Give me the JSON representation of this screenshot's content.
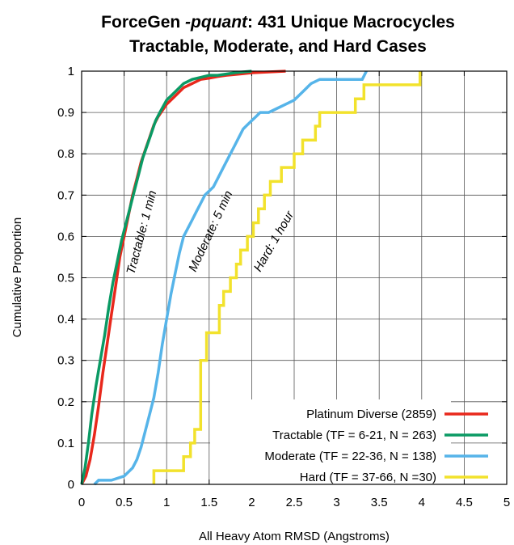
{
  "chart_data": {
    "type": "line",
    "title": {
      "line1_prefix": "ForceGen ",
      "line1_italic": "-pquant",
      "line1_suffix": ": 431 Unique Macrocycles",
      "line2": "Tractable, Moderate, and Hard Cases"
    },
    "xlabel": "All Heavy Atom RMSD (Angstroms)",
    "ylabel": "Cumulative Proportion",
    "xlim": [
      0,
      5
    ],
    "ylim": [
      0,
      1
    ],
    "xticks": [
      "0",
      "0.5",
      "1",
      "1.5",
      "2",
      "2.5",
      "3",
      "3.5",
      "4",
      "4.5",
      "5"
    ],
    "yticks": [
      "0",
      "0.1",
      "0.2",
      "0.3",
      "0.4",
      "0.5",
      "0.6",
      "0.7",
      "0.8",
      "0.9",
      "1"
    ],
    "grid": true,
    "legend_position": "bottom-right",
    "annotations": [
      "Tractable: 1 min",
      "Moderate: 5 min",
      "Hard: 1 hour"
    ],
    "series": [
      {
        "name": "Platinum Diverse (2859)",
        "color": "#e8281c",
        "x": [
          0.0,
          0.05,
          0.1,
          0.15,
          0.2,
          0.25,
          0.3,
          0.35,
          0.4,
          0.45,
          0.5,
          0.55,
          0.6,
          0.65,
          0.7,
          0.75,
          0.8,
          0.85,
          0.9,
          1.0,
          1.1,
          1.2,
          1.3,
          1.4,
          1.5,
          1.6,
          1.7,
          1.8,
          1.9,
          2.0,
          2.1,
          2.2,
          2.4
        ],
        "y": [
          0.0,
          0.02,
          0.06,
          0.12,
          0.19,
          0.27,
          0.34,
          0.41,
          0.48,
          0.55,
          0.6,
          0.65,
          0.7,
          0.74,
          0.78,
          0.81,
          0.84,
          0.87,
          0.89,
          0.92,
          0.94,
          0.96,
          0.97,
          0.98,
          0.983,
          0.987,
          0.99,
          0.992,
          0.994,
          0.996,
          0.997,
          0.998,
          1.0
        ]
      },
      {
        "name": "Tractable (TF = 6-21, N = 263)",
        "color": "#0a9a64",
        "x": [
          0.0,
          0.04,
          0.08,
          0.12,
          0.17,
          0.22,
          0.27,
          0.32,
          0.37,
          0.42,
          0.47,
          0.52,
          0.57,
          0.62,
          0.67,
          0.72,
          0.77,
          0.82,
          0.87,
          0.92,
          1.0,
          1.1,
          1.2,
          1.3,
          1.4,
          1.5,
          1.6,
          1.7,
          1.8,
          1.9,
          2.0
        ],
        "y": [
          0.0,
          0.04,
          0.1,
          0.17,
          0.24,
          0.3,
          0.36,
          0.43,
          0.49,
          0.54,
          0.59,
          0.63,
          0.67,
          0.71,
          0.75,
          0.79,
          0.82,
          0.85,
          0.88,
          0.9,
          0.93,
          0.95,
          0.97,
          0.98,
          0.985,
          0.99,
          0.99,
          0.993,
          0.996,
          0.998,
          1.0
        ]
      },
      {
        "name": "Moderate (TF = 22-36, N = 138)",
        "color": "#56b4e9",
        "x": [
          0.15,
          0.2,
          0.35,
          0.5,
          0.6,
          0.65,
          0.7,
          0.75,
          0.8,
          0.85,
          0.9,
          0.95,
          1.0,
          1.05,
          1.1,
          1.15,
          1.2,
          1.25,
          1.3,
          1.35,
          1.4,
          1.45,
          1.5,
          1.55,
          1.6,
          1.65,
          1.7,
          1.75,
          1.8,
          1.85,
          1.9,
          1.95,
          2.0,
          2.05,
          2.1,
          2.2,
          2.3,
          2.4,
          2.5,
          2.6,
          2.7,
          2.8,
          3.0,
          3.3,
          3.35
        ],
        "y": [
          0.0,
          0.01,
          0.01,
          0.02,
          0.04,
          0.06,
          0.09,
          0.13,
          0.17,
          0.21,
          0.27,
          0.34,
          0.4,
          0.46,
          0.51,
          0.56,
          0.6,
          0.62,
          0.64,
          0.66,
          0.68,
          0.7,
          0.71,
          0.72,
          0.74,
          0.76,
          0.78,
          0.8,
          0.82,
          0.84,
          0.86,
          0.87,
          0.88,
          0.89,
          0.9,
          0.9,
          0.91,
          0.92,
          0.93,
          0.95,
          0.97,
          0.98,
          0.98,
          0.98,
          1.0
        ]
      },
      {
        "name": "Hard (TF = 37-66, N =30)",
        "color": "#f2e22c",
        "x": [
          0.85,
          0.85,
          1.2,
          1.2,
          1.28,
          1.28,
          1.33,
          1.33,
          1.4,
          1.4,
          1.47,
          1.47,
          1.62,
          1.62,
          1.67,
          1.67,
          1.75,
          1.75,
          1.82,
          1.82,
          1.87,
          1.87,
          1.95,
          1.95,
          2.02,
          2.02,
          2.08,
          2.08,
          2.15,
          2.15,
          2.22,
          2.22,
          2.35,
          2.35,
          2.5,
          2.5,
          2.6,
          2.6,
          2.75,
          2.75,
          2.8,
          2.8,
          3.22,
          3.22,
          3.32,
          3.32,
          3.45,
          3.45,
          3.62,
          3.62,
          3.98,
          3.98
        ],
        "y": [
          0.0,
          0.033,
          0.033,
          0.067,
          0.067,
          0.1,
          0.1,
          0.133,
          0.133,
          0.3,
          0.3,
          0.367,
          0.367,
          0.433,
          0.433,
          0.467,
          0.467,
          0.5,
          0.5,
          0.533,
          0.533,
          0.567,
          0.567,
          0.6,
          0.6,
          0.633,
          0.633,
          0.667,
          0.667,
          0.7,
          0.7,
          0.733,
          0.733,
          0.767,
          0.767,
          0.8,
          0.8,
          0.833,
          0.833,
          0.867,
          0.867,
          0.9,
          0.9,
          0.933,
          0.933,
          0.967,
          0.967,
          0.967,
          0.967,
          0.967,
          0.967,
          1.0
        ]
      }
    ]
  }
}
